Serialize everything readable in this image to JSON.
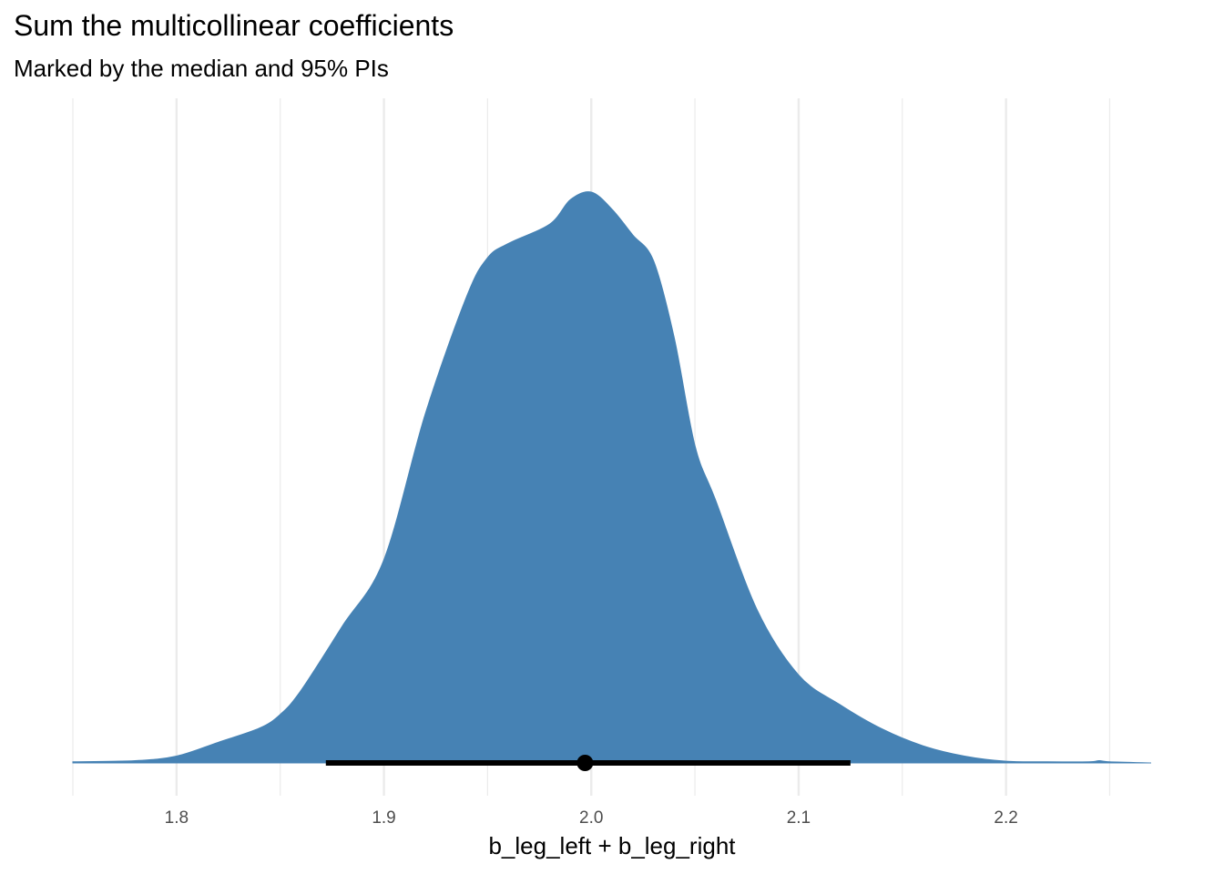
{
  "colors": {
    "density": "#4682B4",
    "grid": "#ebebeb",
    "interval": "#000000"
  },
  "chart_data": {
    "type": "area",
    "title": "Sum the multicollinear coefficients",
    "subtitle": "Marked by the median and 95% PIs",
    "xlabel": "b_leg_left + b_leg_right",
    "ylabel": "",
    "xlim": [
      1.75,
      2.27
    ],
    "xticks": [
      "1.8",
      "1.9",
      "2.0",
      "2.1",
      "2.2"
    ],
    "xtick_values": [
      1.8,
      1.9,
      2.0,
      2.1,
      2.2
    ],
    "minor_grid": [
      1.75,
      1.85,
      1.95,
      2.05,
      2.15,
      2.25
    ],
    "y_axis_shown": false,
    "grid": true,
    "density": {
      "x": [
        1.75,
        1.78,
        1.8,
        1.82,
        1.84,
        1.85,
        1.86,
        1.88,
        1.9,
        1.92,
        1.94,
        1.95,
        1.96,
        1.98,
        1.99,
        2.0,
        2.01,
        2.02,
        2.03,
        2.04,
        2.05,
        2.06,
        2.08,
        2.1,
        2.12,
        2.14,
        2.16,
        2.18,
        2.2,
        2.22,
        2.24,
        2.245,
        2.25,
        2.27
      ],
      "y": [
        0.002,
        0.004,
        0.012,
        0.036,
        0.061,
        0.085,
        0.127,
        0.24,
        0.356,
        0.612,
        0.818,
        0.885,
        0.91,
        0.944,
        0.987,
        1.0,
        0.97,
        0.925,
        0.88,
        0.745,
        0.556,
        0.46,
        0.268,
        0.154,
        0.102,
        0.06,
        0.03,
        0.012,
        0.003,
        0.002,
        0.002,
        0.004,
        0.002,
        0.0
      ]
    },
    "median": 1.997,
    "interval": [
      1.872,
      2.125
    ]
  }
}
